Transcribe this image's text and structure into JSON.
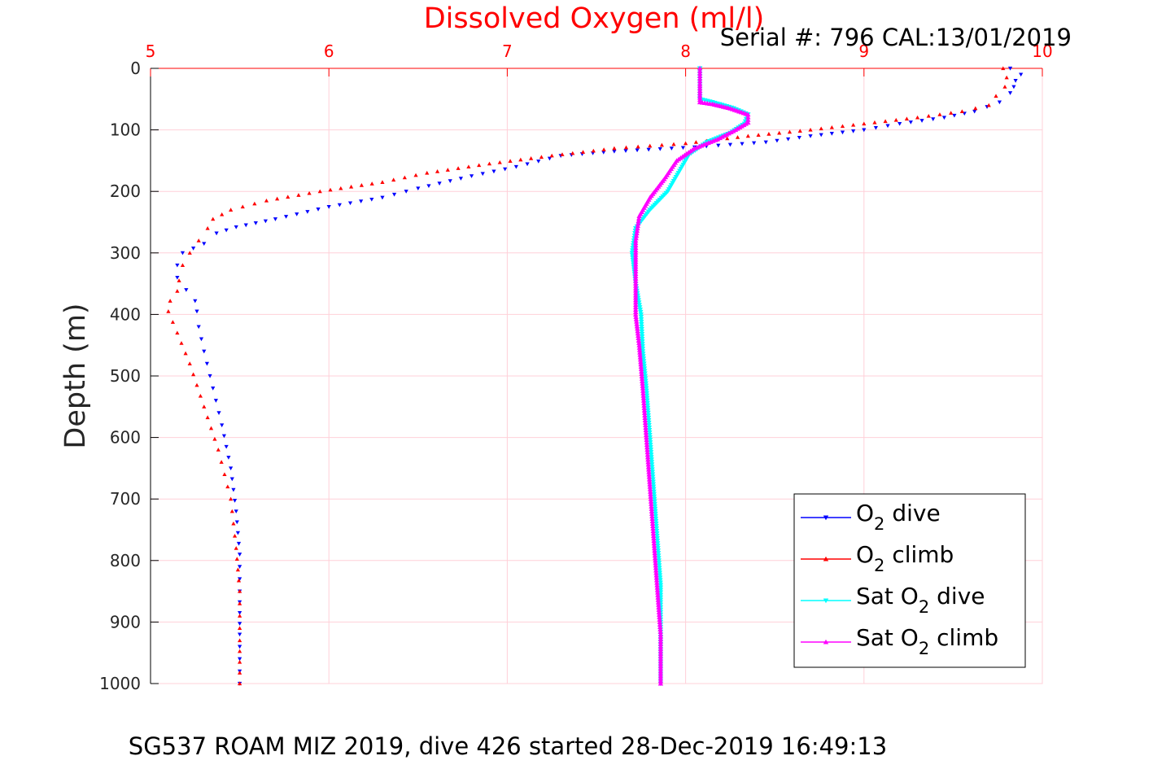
{
  "chart_data": {
    "type": "scatter",
    "title": "Dissolved Oxygen (ml/l)",
    "title_color": "#ff0000",
    "subtitle": "Serial #: 796  CAL:13/01/2019",
    "ylabel": "Depth (m)",
    "caption": "SG537 ROAM MIZ 2019, dive 426 started 28-Dec-2019 16:49:13",
    "xlim": [
      5,
      10
    ],
    "ylim": [
      0,
      1000
    ],
    "y_reversed": true,
    "x_axis_location": "top",
    "xticks": [
      "5",
      "6",
      "7",
      "8",
      "9",
      "10"
    ],
    "yticks": [
      "0",
      "100",
      "200",
      "300",
      "400",
      "500",
      "600",
      "700",
      "800",
      "900",
      "1000"
    ],
    "grid": true,
    "grid_color": "#ffd0d8",
    "legend_placement": "bottom-right",
    "series": [
      {
        "name_main": "O",
        "name_sub": "2",
        "name_tail": " dive",
        "color": "#0000ff",
        "marker": "triangle-down",
        "points": [
          [
            9.82,
            0
          ],
          [
            9.88,
            10
          ],
          [
            9.85,
            20
          ],
          [
            9.84,
            30
          ],
          [
            9.82,
            40
          ],
          [
            9.76,
            55
          ],
          [
            9.62,
            70
          ],
          [
            9.45,
            80
          ],
          [
            9.2,
            90
          ],
          [
            9.0,
            100
          ],
          [
            8.7,
            110
          ],
          [
            8.45,
            120
          ],
          [
            8.05,
            128
          ],
          [
            7.6,
            135
          ],
          [
            7.3,
            142
          ],
          [
            7.05,
            160
          ],
          [
            6.8,
            175
          ],
          [
            6.5,
            195
          ],
          [
            6.3,
            210
          ],
          [
            6.0,
            225
          ],
          [
            5.7,
            245
          ],
          [
            5.48,
            258
          ],
          [
            5.37,
            268
          ],
          [
            5.3,
            285
          ],
          [
            5.18,
            300
          ],
          [
            5.15,
            320
          ],
          [
            5.15,
            340
          ],
          [
            5.2,
            360
          ],
          [
            5.25,
            378
          ],
          [
            5.26,
            395
          ],
          [
            5.27,
            420
          ],
          [
            5.3,
            460
          ],
          [
            5.35,
            520
          ],
          [
            5.4,
            580
          ],
          [
            5.45,
            650
          ],
          [
            5.48,
            720
          ],
          [
            5.5,
            790
          ],
          [
            5.5,
            850
          ],
          [
            5.5,
            920
          ],
          [
            5.5,
            1000
          ]
        ]
      },
      {
        "name_main": "O",
        "name_sub": "2",
        "name_tail": " climb",
        "color": "#ff0000",
        "marker": "triangle-up",
        "points": [
          [
            9.78,
            0
          ],
          [
            9.8,
            15
          ],
          [
            9.79,
            30
          ],
          [
            9.74,
            45
          ],
          [
            9.7,
            60
          ],
          [
            9.55,
            70
          ],
          [
            9.3,
            80
          ],
          [
            9.0,
            90
          ],
          [
            8.7,
            100
          ],
          [
            8.35,
            110
          ],
          [
            8.0,
            122
          ],
          [
            7.6,
            130
          ],
          [
            7.25,
            142
          ],
          [
            6.9,
            155
          ],
          [
            6.55,
            170
          ],
          [
            6.3,
            185
          ],
          [
            5.95,
            200
          ],
          [
            5.65,
            215
          ],
          [
            5.45,
            230
          ],
          [
            5.35,
            245
          ],
          [
            5.32,
            260
          ],
          [
            5.27,
            280
          ],
          [
            5.22,
            300
          ],
          [
            5.18,
            320
          ],
          [
            5.16,
            345
          ],
          [
            5.15,
            362
          ],
          [
            5.11,
            378
          ],
          [
            5.1,
            395
          ],
          [
            5.15,
            430
          ],
          [
            5.22,
            480
          ],
          [
            5.3,
            550
          ],
          [
            5.38,
            620
          ],
          [
            5.45,
            700
          ],
          [
            5.48,
            780
          ],
          [
            5.5,
            850
          ],
          [
            5.5,
            930
          ],
          [
            5.5,
            1000
          ]
        ]
      },
      {
        "name_main": "Sat O",
        "name_sub": "2",
        "name_tail": " dive",
        "color": "#00ffff",
        "marker": "triangle-down",
        "points": [
          [
            8.08,
            0
          ],
          [
            8.08,
            25
          ],
          [
            8.08,
            50
          ],
          [
            8.15,
            55
          ],
          [
            8.27,
            65
          ],
          [
            8.35,
            75
          ],
          [
            8.33,
            90
          ],
          [
            8.25,
            105
          ],
          [
            8.12,
            120
          ],
          [
            8.02,
            140
          ],
          [
            7.96,
            170
          ],
          [
            7.9,
            200
          ],
          [
            7.8,
            230
          ],
          [
            7.72,
            260
          ],
          [
            7.7,
            300
          ],
          [
            7.72,
            350
          ],
          [
            7.75,
            400
          ],
          [
            7.76,
            460
          ],
          [
            7.78,
            520
          ],
          [
            7.8,
            600
          ],
          [
            7.82,
            680
          ],
          [
            7.84,
            760
          ],
          [
            7.86,
            840
          ],
          [
            7.86,
            920
          ],
          [
            7.86,
            1000
          ]
        ]
      },
      {
        "name_main": "Sat O",
        "name_sub": "2",
        "name_tail": " climb",
        "color": "#ff00ff",
        "marker": "triangle-up",
        "points": [
          [
            8.08,
            0
          ],
          [
            8.08,
            25
          ],
          [
            8.08,
            55
          ],
          [
            8.15,
            58
          ],
          [
            8.25,
            65
          ],
          [
            8.35,
            75
          ],
          [
            8.35,
            88
          ],
          [
            8.28,
            100
          ],
          [
            8.18,
            115
          ],
          [
            8.05,
            130
          ],
          [
            7.95,
            150
          ],
          [
            7.88,
            180
          ],
          [
            7.8,
            210
          ],
          [
            7.74,
            240
          ],
          [
            7.72,
            280
          ],
          [
            7.72,
            330
          ],
          [
            7.72,
            400
          ],
          [
            7.74,
            450
          ],
          [
            7.76,
            520
          ],
          [
            7.78,
            600
          ],
          [
            7.8,
            680
          ],
          [
            7.82,
            760
          ],
          [
            7.84,
            840
          ],
          [
            7.86,
            920
          ],
          [
            7.86,
            1000
          ]
        ]
      }
    ]
  }
}
